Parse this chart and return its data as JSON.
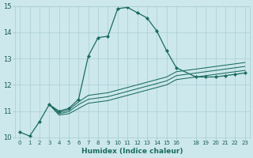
{
  "xlabel": "Humidex (Indice chaleur)",
  "bg_color": "#cce8ec",
  "grid_color": "#aacdd4",
  "line_color": "#1a6b60",
  "xlim": [
    -0.5,
    23.5
  ],
  "ylim": [
    10,
    15
  ],
  "xticks": [
    0,
    1,
    2,
    3,
    4,
    5,
    6,
    7,
    8,
    9,
    10,
    11,
    12,
    13,
    14,
    15,
    16,
    18,
    19,
    20,
    21,
    22,
    23
  ],
  "yticks": [
    10,
    11,
    12,
    13,
    14,
    15
  ],
  "line1_x": [
    0,
    1,
    2,
    3,
    4,
    5,
    6,
    7,
    8,
    9,
    10,
    11,
    12,
    13,
    14,
    15,
    16,
    18,
    19,
    20,
    21,
    22,
    23
  ],
  "line1_y": [
    10.2,
    10.05,
    10.6,
    11.25,
    11.0,
    11.1,
    11.45,
    13.1,
    13.8,
    13.85,
    14.9,
    14.95,
    14.75,
    14.55,
    14.05,
    13.3,
    12.65,
    12.3,
    12.3,
    12.3,
    12.35,
    12.4,
    12.45
  ],
  "line2_x": [
    3,
    4,
    5,
    6,
    7,
    8,
    9,
    10,
    11,
    12,
    13,
    14,
    15,
    16,
    18,
    19,
    20,
    21,
    22,
    23
  ],
  "line2_y": [
    11.25,
    10.95,
    11.05,
    11.35,
    11.6,
    11.65,
    11.7,
    11.8,
    11.9,
    12.0,
    12.1,
    12.2,
    12.3,
    12.5,
    12.6,
    12.65,
    12.7,
    12.75,
    12.8,
    12.85
  ],
  "line3_x": [
    3,
    4,
    5,
    6,
    7,
    8,
    9,
    10,
    11,
    12,
    13,
    14,
    15,
    16,
    18,
    19,
    20,
    21,
    22,
    23
  ],
  "line3_y": [
    11.25,
    10.9,
    10.98,
    11.25,
    11.45,
    11.5,
    11.55,
    11.65,
    11.75,
    11.85,
    11.95,
    12.05,
    12.15,
    12.35,
    12.45,
    12.5,
    12.55,
    12.6,
    12.65,
    12.7
  ],
  "line4_x": [
    3,
    4,
    5,
    6,
    7,
    8,
    9,
    10,
    11,
    12,
    13,
    14,
    15,
    16,
    18,
    19,
    20,
    21,
    22,
    23
  ],
  "line4_y": [
    11.25,
    10.85,
    10.9,
    11.1,
    11.3,
    11.35,
    11.4,
    11.5,
    11.6,
    11.7,
    11.8,
    11.9,
    12.0,
    12.2,
    12.3,
    12.35,
    12.4,
    12.45,
    12.5,
    12.55
  ]
}
